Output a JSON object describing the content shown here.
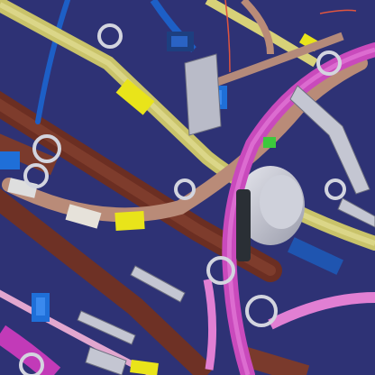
{
  "viewport": {
    "kind": "3D CAD wiring harness view",
    "background_color": "#2e3275",
    "colors": {
      "copper_pipe": "#7a3a2c",
      "yellow_harness": "#d7d178",
      "beige_cable": "#b98b78",
      "magenta_cable": "#d54cc9",
      "pink_cable": "#e17fd3",
      "blue_cable": "#1d5fc6",
      "clip_metal": "#c9cbd6",
      "connector_blue": "#1f6fd8",
      "tape_yellow": "#e9e41a",
      "green_marker": "#3cc93c",
      "dark_sleeve": "#2a2f35"
    },
    "parts": [
      {
        "name": "copper-pipe",
        "count": 4
      },
      {
        "name": "yellow-cable-harness",
        "count": 2
      },
      {
        "name": "beige-cable",
        "count": 3
      },
      {
        "name": "magenta-cable",
        "count": 2
      },
      {
        "name": "pink-cable",
        "count": 2
      },
      {
        "name": "blue-cable",
        "count": 1
      },
      {
        "name": "p-clip",
        "count": 9
      },
      {
        "name": "bracket",
        "count": 6
      },
      {
        "name": "blue-connector",
        "count": 5
      },
      {
        "name": "yellow-tape-band",
        "count": 3
      },
      {
        "name": "grey-drum-component",
        "count": 1
      }
    ]
  }
}
